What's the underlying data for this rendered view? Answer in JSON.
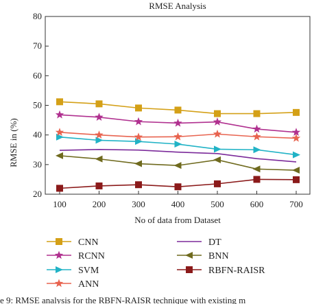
{
  "caption_fragment": "e 9: RMSE analysis for the RBFN-RAISR technique with existing m",
  "chart_data": {
    "type": "line",
    "title": "RMSE Analysis",
    "xlabel": "No of data from Dataset",
    "ylabel": "RMSE in (%)",
    "x": [
      100,
      200,
      300,
      400,
      500,
      600,
      700
    ],
    "xticks": [
      "100",
      "200",
      "300",
      "400",
      "500",
      "600",
      "700"
    ],
    "yticks": [
      "20",
      "30",
      "40",
      "50",
      "60",
      "70",
      "80"
    ],
    "xlim": [
      100,
      700
    ],
    "ylim": [
      20,
      80
    ],
    "grid": false,
    "legend_placement": "bottom, two columns",
    "series": [
      {
        "name": "CNN",
        "color": "#d4a017",
        "marker": "square",
        "values": [
          51.2,
          50.5,
          49.1,
          48.4,
          47.2,
          47.2,
          47.6
        ]
      },
      {
        "name": "RCNN",
        "color": "#b0308f",
        "marker": "star",
        "values": [
          46.8,
          46.0,
          44.5,
          44.0,
          44.4,
          42.0,
          40.9
        ]
      },
      {
        "name": "SVM",
        "color": "#21b3c6",
        "marker": "triangle-right",
        "values": [
          39.3,
          38.2,
          37.8,
          36.9,
          35.2,
          35.0,
          33.3
        ]
      },
      {
        "name": "ANN",
        "color": "#e8634f",
        "marker": "star",
        "values": [
          40.9,
          40.0,
          39.3,
          39.4,
          40.3,
          39.4,
          38.9
        ]
      },
      {
        "name": "DT",
        "color": "#7b2a9a",
        "marker": "none",
        "values": [
          34.8,
          35.1,
          34.9,
          34.2,
          33.7,
          32.0,
          30.9
        ]
      },
      {
        "name": "BNN",
        "color": "#6f6a1e",
        "marker": "triangle-left",
        "values": [
          33.0,
          31.9,
          30.3,
          29.7,
          31.6,
          28.5,
          28.1
        ]
      },
      {
        "name": "RBFN-RAISR",
        "color": "#8b1a1a",
        "marker": "square",
        "values": [
          22.0,
          22.8,
          23.2,
          22.5,
          23.5,
          25.0,
          24.9
        ]
      }
    ]
  }
}
